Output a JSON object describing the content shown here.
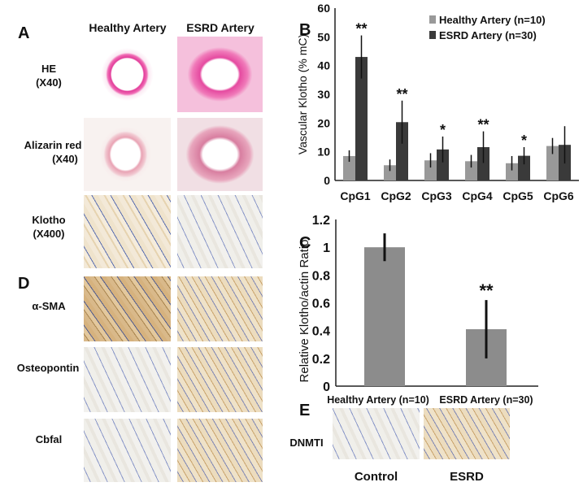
{
  "panels": {
    "A": "A",
    "B": "B",
    "C": "C",
    "D": "D",
    "E": "E"
  },
  "panelA": {
    "col_headers": [
      "Healthy Artery",
      "ESRD Artery"
    ],
    "rows": [
      [
        "HE",
        "(X40)"
      ],
      [
        "Alizarin red",
        "(X40)"
      ],
      [
        "Klotho",
        "(X400)"
      ]
    ]
  },
  "panelD": {
    "rows": [
      "α-SMA",
      "Osteopontin",
      "Cbfal"
    ]
  },
  "panelE": {
    "row_label": "DNMTI",
    "captions": [
      "Control",
      "ESRD"
    ]
  },
  "chart_data": [
    {
      "type": "bar",
      "panel": "B",
      "ylabel": "Vascular Klotho (% mC)",
      "ylim": [
        0,
        60
      ],
      "yticks": [
        0,
        10,
        20,
        30,
        40,
        50,
        60
      ],
      "categories": [
        "CpG1",
        "CpG2",
        "CpG3",
        "CpG4",
        "CpG5",
        "CpG6"
      ],
      "legend_position": "top-right",
      "series": [
        {
          "name": "Healthy Artery (n=10)",
          "color": "#999999",
          "values": [
            8.5,
            5.3,
            7.0,
            6.7,
            6.0,
            12.0
          ],
          "errors": [
            2.0,
            2.0,
            2.5,
            2.2,
            2.5,
            2.8
          ]
        },
        {
          "name": "ESRD Artery (n=30)",
          "color": "#3a3a3a",
          "values": [
            43.0,
            20.3,
            10.8,
            11.6,
            8.6,
            12.4
          ],
          "errors": [
            7.5,
            7.5,
            4.5,
            5.5,
            3.0,
            6.5
          ]
        }
      ],
      "significance": [
        "**",
        "**",
        "*",
        "**",
        "*",
        ""
      ]
    },
    {
      "type": "bar",
      "panel": "C",
      "ylabel": "Relative Klotho/actin Ratio",
      "ylim": [
        0,
        1.2
      ],
      "yticks": [
        "0",
        "0.2",
        "0.4",
        "0.6",
        "0.8",
        "1",
        "1.2"
      ],
      "categories": [
        "Healthy Artery (n=10)",
        "ESRD Artery (n=30)"
      ],
      "color": "#8c8c8c",
      "values": [
        1.0,
        0.41
      ],
      "errors": [
        0.1,
        0.21
      ],
      "significance": [
        "",
        "**"
      ]
    }
  ]
}
